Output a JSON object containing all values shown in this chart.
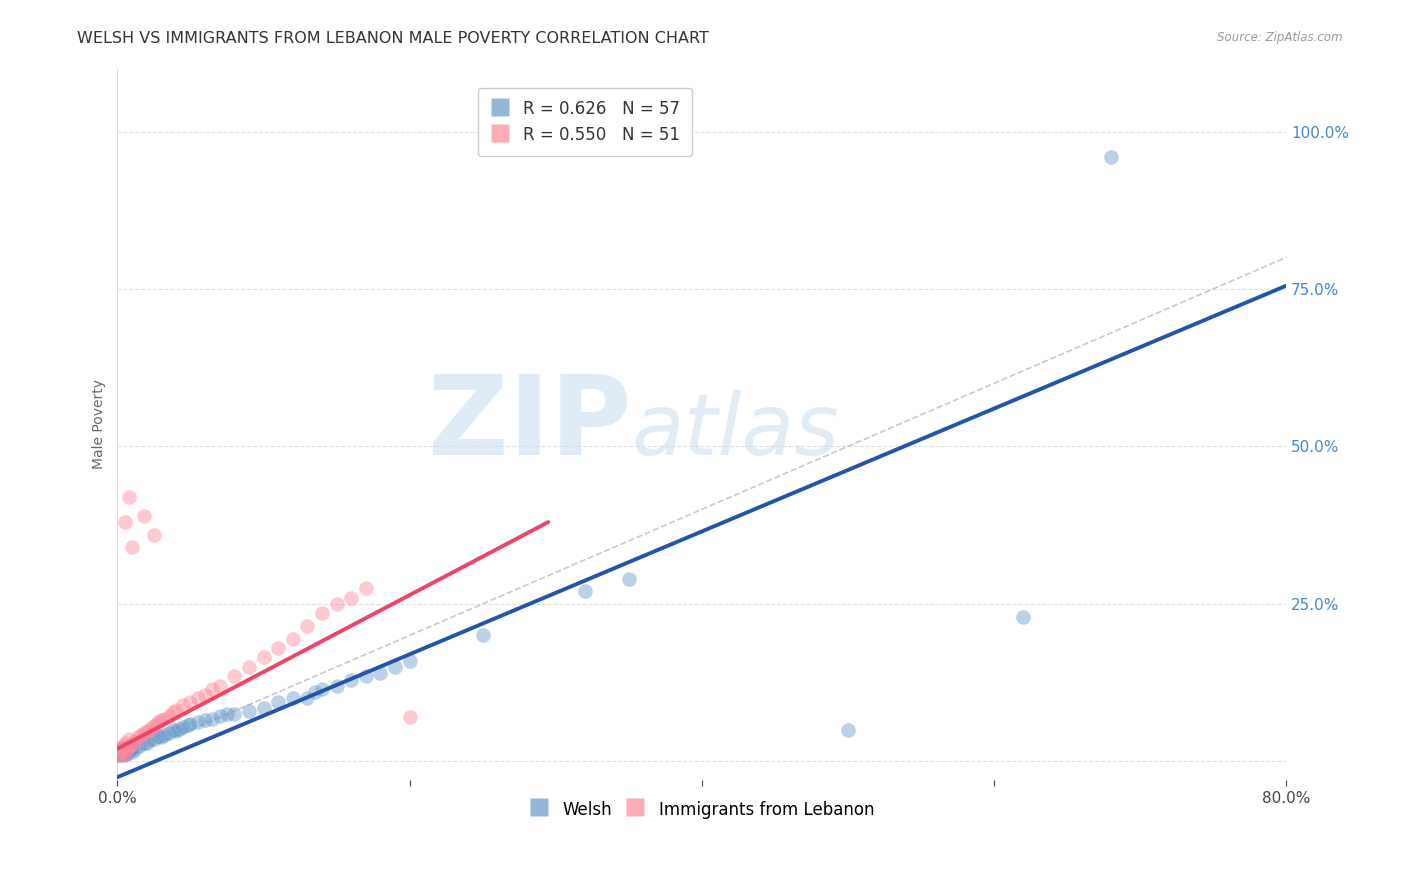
{
  "title": "WELSH VS IMMIGRANTS FROM LEBANON MALE POVERTY CORRELATION CHART",
  "source": "Source: ZipAtlas.com",
  "ylabel": "Male Poverty",
  "x_min": 0.0,
  "x_max": 0.8,
  "y_min": -0.03,
  "y_max": 1.1,
  "welsh_color": "#6699CC",
  "lebanon_color": "#FF8899",
  "welsh_line_color": "#2255AA",
  "lebanon_line_color": "#EE4466",
  "welsh_R": 0.626,
  "welsh_N": 57,
  "lebanon_R": 0.55,
  "lebanon_N": 51,
  "watermark_zip": "ZIP",
  "watermark_atlas": "atlas",
  "welsh_scatter": [
    [
      0.001,
      0.01
    ],
    [
      0.001,
      0.015
    ],
    [
      0.002,
      0.012
    ],
    [
      0.002,
      0.018
    ],
    [
      0.003,
      0.01
    ],
    [
      0.003,
      0.02
    ],
    [
      0.004,
      0.015
    ],
    [
      0.004,
      0.022
    ],
    [
      0.005,
      0.01
    ],
    [
      0.005,
      0.018
    ],
    [
      0.006,
      0.012
    ],
    [
      0.007,
      0.015
    ],
    [
      0.008,
      0.018
    ],
    [
      0.009,
      0.02
    ],
    [
      0.01,
      0.015
    ],
    [
      0.01,
      0.025
    ],
    [
      0.012,
      0.02
    ],
    [
      0.015,
      0.025
    ],
    [
      0.018,
      0.03
    ],
    [
      0.02,
      0.03
    ],
    [
      0.022,
      0.035
    ],
    [
      0.025,
      0.035
    ],
    [
      0.028,
      0.04
    ],
    [
      0.03,
      0.038
    ],
    [
      0.032,
      0.042
    ],
    [
      0.035,
      0.045
    ],
    [
      0.038,
      0.05
    ],
    [
      0.04,
      0.048
    ],
    [
      0.042,
      0.052
    ],
    [
      0.045,
      0.055
    ],
    [
      0.048,
      0.058
    ],
    [
      0.05,
      0.06
    ],
    [
      0.055,
      0.062
    ],
    [
      0.06,
      0.065
    ],
    [
      0.065,
      0.068
    ],
    [
      0.07,
      0.072
    ],
    [
      0.075,
      0.075
    ],
    [
      0.08,
      0.075
    ],
    [
      0.09,
      0.08
    ],
    [
      0.1,
      0.085
    ],
    [
      0.11,
      0.095
    ],
    [
      0.12,
      0.1
    ],
    [
      0.13,
      0.1
    ],
    [
      0.135,
      0.11
    ],
    [
      0.14,
      0.115
    ],
    [
      0.15,
      0.12
    ],
    [
      0.16,
      0.13
    ],
    [
      0.17,
      0.135
    ],
    [
      0.18,
      0.14
    ],
    [
      0.19,
      0.15
    ],
    [
      0.2,
      0.16
    ],
    [
      0.25,
      0.2
    ],
    [
      0.32,
      0.27
    ],
    [
      0.35,
      0.29
    ],
    [
      0.5,
      0.05
    ],
    [
      0.62,
      0.23
    ],
    [
      0.68,
      0.96
    ]
  ],
  "lebanon_scatter": [
    [
      0.001,
      0.01
    ],
    [
      0.001,
      0.018
    ],
    [
      0.002,
      0.012
    ],
    [
      0.002,
      0.02
    ],
    [
      0.003,
      0.015
    ],
    [
      0.003,
      0.022
    ],
    [
      0.004,
      0.018
    ],
    [
      0.004,
      0.025
    ],
    [
      0.005,
      0.012
    ],
    [
      0.005,
      0.03
    ],
    [
      0.006,
      0.02
    ],
    [
      0.007,
      0.022
    ],
    [
      0.008,
      0.025
    ],
    [
      0.008,
      0.035
    ],
    [
      0.01,
      0.028
    ],
    [
      0.012,
      0.032
    ],
    [
      0.014,
      0.038
    ],
    [
      0.016,
      0.042
    ],
    [
      0.018,
      0.045
    ],
    [
      0.02,
      0.048
    ],
    [
      0.022,
      0.05
    ],
    [
      0.024,
      0.055
    ],
    [
      0.026,
      0.058
    ],
    [
      0.028,
      0.062
    ],
    [
      0.03,
      0.065
    ],
    [
      0.032,
      0.068
    ],
    [
      0.035,
      0.072
    ],
    [
      0.038,
      0.078
    ],
    [
      0.04,
      0.082
    ],
    [
      0.045,
      0.09
    ],
    [
      0.05,
      0.095
    ],
    [
      0.055,
      0.1
    ],
    [
      0.06,
      0.105
    ],
    [
      0.065,
      0.115
    ],
    [
      0.07,
      0.12
    ],
    [
      0.08,
      0.135
    ],
    [
      0.09,
      0.15
    ],
    [
      0.1,
      0.165
    ],
    [
      0.11,
      0.18
    ],
    [
      0.12,
      0.195
    ],
    [
      0.13,
      0.215
    ],
    [
      0.14,
      0.235
    ],
    [
      0.15,
      0.25
    ],
    [
      0.16,
      0.26
    ],
    [
      0.17,
      0.275
    ],
    [
      0.01,
      0.34
    ],
    [
      0.018,
      0.39
    ],
    [
      0.025,
      0.36
    ],
    [
      0.005,
      0.38
    ],
    [
      0.008,
      0.42
    ],
    [
      0.2,
      0.07
    ]
  ],
  "welsh_trend_x": [
    0.0,
    0.8
  ],
  "welsh_trend_y": [
    -0.025,
    0.755
  ],
  "lebanon_trend_x": [
    0.0,
    0.295
  ],
  "lebanon_trend_y": [
    0.02,
    0.38
  ],
  "ref_line_x": [
    0.0,
    1.05
  ],
  "ref_line_y": [
    0.0,
    1.05
  ],
  "background_color": "#FFFFFF",
  "grid_color": "#DDDDDD",
  "title_fontsize": 11.5,
  "axis_label_fontsize": 10,
  "tick_fontsize": 10,
  "legend_fontsize": 12
}
